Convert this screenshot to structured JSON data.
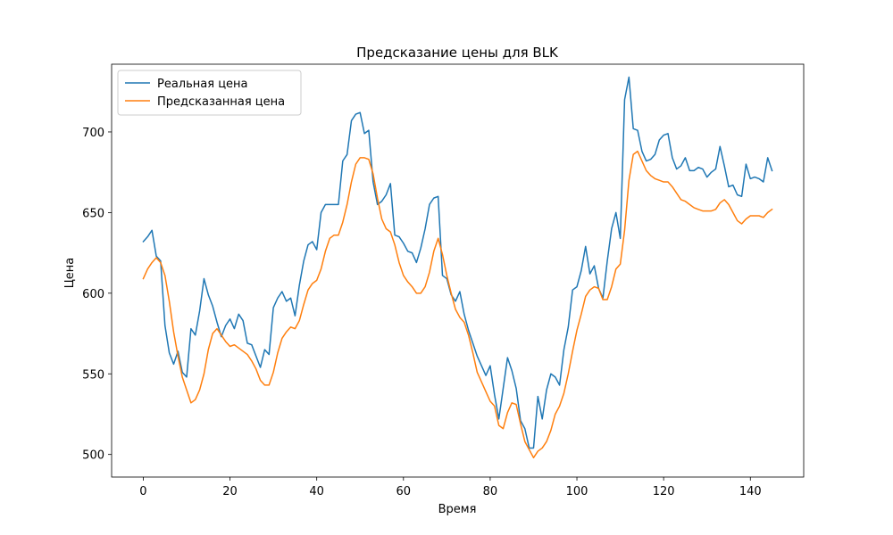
{
  "chart_data": {
    "type": "line",
    "title": "Предсказание цены для BLK",
    "xlabel": "Время",
    "ylabel": "Цена",
    "xlim": [
      -7.3,
      152.3
    ],
    "ylim": [
      486,
      742
    ],
    "xticks": [
      0,
      20,
      40,
      60,
      80,
      100,
      120,
      140
    ],
    "yticks": [
      500,
      550,
      600,
      650,
      700
    ],
    "legend_position": "upper left",
    "grid": false,
    "series": [
      {
        "name": "Реальная цена",
        "color": "#1f77b4",
        "values": [
          632,
          635,
          639,
          623,
          620,
          580,
          563,
          556,
          564,
          551,
          548,
          578,
          574,
          589,
          609,
          599,
          592,
          582,
          573,
          580,
          584,
          578,
          587,
          583,
          569,
          568,
          561,
          554,
          565,
          562,
          591,
          597,
          601,
          595,
          597,
          586,
          605,
          620,
          630,
          632,
          627,
          650,
          655,
          655,
          655,
          655,
          682,
          686,
          707,
          711,
          712,
          699,
          701,
          669,
          655,
          657,
          661,
          668,
          636,
          635,
          631,
          626,
          625,
          619,
          628,
          640,
          655,
          659,
          660,
          611,
          609,
          599,
          595,
          601,
          587,
          577,
          569,
          561,
          555,
          549,
          555,
          537,
          522,
          541,
          560,
          552,
          541,
          521,
          516,
          504,
          504,
          536,
          522,
          540,
          550,
          548,
          543,
          565,
          579,
          602,
          604,
          614,
          629,
          612,
          617,
          603,
          597,
          620,
          640,
          650,
          634,
          720,
          734,
          702,
          701,
          688,
          682,
          683,
          686,
          695,
          698,
          699,
          684,
          677,
          679,
          684,
          676,
          676,
          678,
          677,
          672,
          675,
          677,
          691,
          679,
          666,
          667,
          661,
          660,
          680,
          671,
          672,
          671,
          669,
          684,
          676
        ]
      },
      {
        "name": "Предсказанная цена",
        "color": "#ff7f0e",
        "values": [
          609,
          615,
          619,
          622,
          619,
          611,
          595,
          576,
          561,
          548,
          540,
          532,
          534,
          540,
          550,
          565,
          575,
          578,
          574,
          570,
          567,
          568,
          566,
          564,
          562,
          558,
          553,
          546,
          543,
          543,
          551,
          563,
          572,
          576,
          579,
          578,
          583,
          593,
          602,
          606,
          608,
          615,
          626,
          634,
          636,
          636,
          644,
          655,
          669,
          680,
          684,
          684,
          683,
          674,
          659,
          646,
          640,
          638,
          630,
          619,
          611,
          607,
          604,
          600,
          600,
          604,
          613,
          626,
          634,
          624,
          611,
          600,
          590,
          585,
          582,
          574,
          563,
          551,
          545,
          539,
          533,
          530,
          518,
          516,
          526,
          532,
          531,
          519,
          508,
          503,
          498,
          502,
          504,
          508,
          515,
          525,
          530,
          538,
          550,
          564,
          577,
          587,
          598,
          602,
          604,
          603,
          596,
          596,
          604,
          615,
          618,
          639,
          670,
          686,
          688,
          682,
          676,
          673,
          671,
          670,
          669,
          669,
          666,
          662,
          658,
          657,
          655,
          653,
          652,
          651,
          651,
          651,
          652,
          656,
          658,
          655,
          650,
          645,
          643,
          646,
          648,
          648,
          648,
          647,
          650,
          652
        ]
      }
    ]
  }
}
